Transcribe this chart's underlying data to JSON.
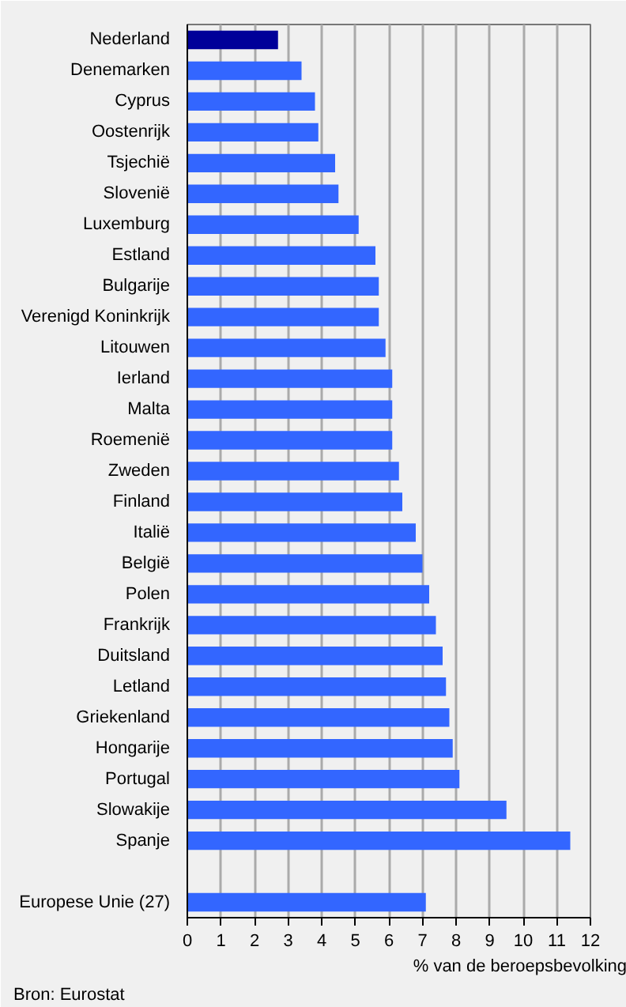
{
  "chart_data": {
    "type": "bar",
    "orientation": "horizontal",
    "xlabel": "% van de beroepsbevolking",
    "annotations": [
      "Bron: Eurostat"
    ],
    "categories": [
      "Nederland",
      "Denemarken",
      "Cyprus",
      "Oostenrijk",
      "Tsjechië",
      "Slovenië",
      "Luxemburg",
      "Estland",
      "Bulgarije",
      "Verenigd Koninkrijk",
      "Litouwen",
      "Ierland",
      "Malta",
      "Roemenië",
      "Zweden",
      "Finland",
      "Italië",
      "België",
      "Polen",
      "Frankrijk",
      "Duitsland",
      "Letland",
      "Griekenland",
      "Hongarije",
      "Portugal",
      "Slowakije",
      "Spanje",
      null,
      "Europese Unie (27)"
    ],
    "values": [
      2.7,
      3.4,
      3.8,
      3.9,
      4.4,
      4.5,
      5.1,
      5.6,
      5.7,
      5.7,
      5.9,
      6.1,
      6.1,
      6.1,
      6.3,
      6.4,
      6.8,
      7.0,
      7.2,
      7.4,
      7.6,
      7.7,
      7.8,
      7.9,
      8.1,
      9.5,
      11.4,
      null,
      7.1
    ],
    "colors": [
      "#000099",
      "#3366ff",
      "#3366ff",
      "#3366ff",
      "#3366ff",
      "#3366ff",
      "#3366ff",
      "#3366ff",
      "#3366ff",
      "#3366ff",
      "#3366ff",
      "#3366ff",
      "#3366ff",
      "#3366ff",
      "#3366ff",
      "#3366ff",
      "#3366ff",
      "#3366ff",
      "#3366ff",
      "#3366ff",
      "#3366ff",
      "#3366ff",
      "#3366ff",
      "#3366ff",
      "#3366ff",
      "#3366ff",
      "#3366ff",
      "#3366ff",
      "#3366ff"
    ],
    "xlim": [
      0,
      12
    ],
    "xticks": [
      0,
      1,
      2,
      3,
      4,
      5,
      6,
      7,
      8,
      9,
      10,
      11,
      12
    ],
    "grid": "x"
  }
}
